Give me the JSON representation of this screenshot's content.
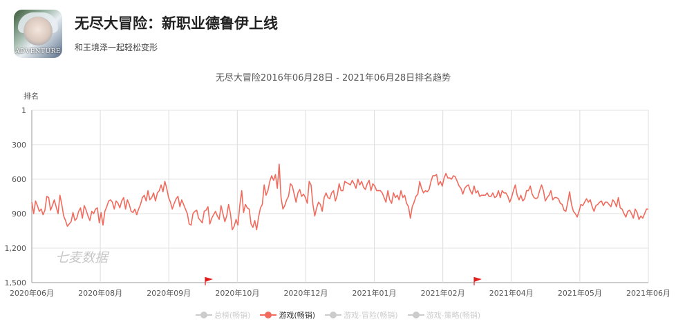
{
  "app": {
    "title": "无尽大冒险：新职业德鲁伊上线",
    "subtitle": "和王境泽一起轻松变形",
    "icon_text": "ADVENTURE"
  },
  "watermark": "七麦数据",
  "legend": [
    {
      "label": "总榜(畅销)",
      "active": false
    },
    {
      "label": "游戏(畅销)",
      "active": true
    },
    {
      "label": "游戏-冒险(畅销)",
      "active": false
    },
    {
      "label": "游戏-策略(畅销)",
      "active": false
    }
  ],
  "chart_data": {
    "type": "line",
    "title": "无尽大冒险2016年06月28日 - 2021年06月28日排名趋势",
    "ylabel": "排名",
    "y_inverted": true,
    "ylim": [
      1,
      1500
    ],
    "y_ticks": [
      1,
      300,
      600,
      900,
      1200,
      1500
    ],
    "y_tick_labels": [
      "1",
      "300",
      "600",
      "900",
      "1,200",
      "1,500"
    ],
    "x_ticks": [
      "2020年06月",
      "2020年08月",
      "2020年09月",
      "2020年10月",
      "2020年12月",
      "2021年01月",
      "2021年02月",
      "2021年04月",
      "2021年05月",
      "2021年06月"
    ],
    "grid": true,
    "series": [
      {
        "name": "游戏(畅销)",
        "color": "#f06b5d",
        "values": [
          800,
          900,
          790,
          830,
          880,
          860,
          910,
          870,
          750,
          760,
          870,
          830,
          780,
          840,
          900,
          740,
          820,
          920,
          960,
          1010,
          990,
          970,
          890,
          960,
          940,
          880,
          850,
          940,
          830,
          870,
          920,
          960,
          880,
          900,
          860,
          850,
          980,
          890,
          1000,
          880,
          840,
          790,
          780,
          800,
          860,
          790,
          810,
          850,
          790,
          760,
          860,
          780,
          820,
          880,
          890,
          860,
          910,
          860,
          820,
          760,
          740,
          790,
          700,
          780,
          760,
          720,
          790,
          720,
          700,
          650,
          710,
          620,
          680,
          760,
          800,
          860,
          810,
          770,
          750,
          840,
          780,
          820,
          860,
          900,
          990,
          1000,
          900,
          880,
          870,
          940,
          960,
          980,
          880,
          870,
          840,
          990,
          940,
          910,
          880,
          920,
          950,
          830,
          900,
          970,
          920,
          820,
          900,
          1040,
          1010,
          950,
          1000,
          830,
          700,
          890,
          820,
          850,
          860,
          990,
          1020,
          960,
          1040,
          930,
          850,
          820,
          650,
          740,
          700,
          620,
          570,
          610,
          560,
          680,
          470,
          760,
          860,
          830,
          780,
          750,
          640,
          660,
          730,
          800,
          720,
          690,
          750,
          730,
          760,
          810,
          620,
          650,
          820,
          920,
          850,
          800,
          820,
          880,
          760,
          720,
          760,
          770,
          720,
          700,
          790,
          740,
          640,
          700,
          700,
          620,
          630,
          640,
          650,
          610,
          640,
          680,
          600,
          650,
          620,
          670,
          690,
          640,
          610,
          700,
          640,
          660,
          700,
          700,
          700,
          720,
          760,
          800,
          700,
          780,
          810,
          720,
          760,
          740,
          780,
          700,
          760,
          740,
          810,
          840,
          940,
          840,
          800,
          750,
          730,
          620,
          680,
          720,
          700,
          710,
          690,
          620,
          570,
          570,
          560,
          650,
          620,
          660,
          590,
          550,
          590,
          590,
          600,
          570,
          580,
          620,
          660,
          680,
          730,
          680,
          660,
          650,
          700,
          730,
          660,
          720,
          700,
          750,
          740,
          740,
          740,
          720,
          750,
          750,
          720,
          760,
          750,
          700,
          760,
          700,
          720,
          720,
          750,
          800,
          760,
          700,
          650,
          740,
          780,
          740,
          790,
          770,
          700,
          700,
          660,
          730,
          760,
          770,
          760,
          700,
          650,
          700,
          790,
          760,
          740,
          700,
          780,
          760,
          760,
          770,
          810,
          820,
          870,
          880,
          800,
          710,
          820,
          880,
          900,
          930,
          880,
          820,
          830,
          800,
          770,
          800,
          780,
          840,
          880,
          830,
          820,
          800,
          790,
          830,
          800,
          800,
          820,
          840,
          780,
          800,
          840,
          760,
          850,
          860,
          900,
          930,
          880,
          870,
          900,
          940,
          860,
          890,
          950,
          920,
          940,
          900,
          860,
          860
        ]
      }
    ]
  }
}
